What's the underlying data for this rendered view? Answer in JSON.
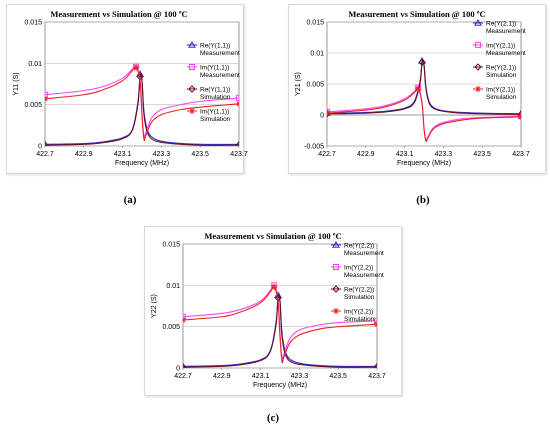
{
  "charts": [
    {
      "id": "a",
      "type": "line",
      "title": "Measurement vs Simulation @ 100 ºC",
      "xlabel": "Frequency (MHz)",
      "ylabel": "Y11 (S)",
      "xlim": [
        422.7,
        423.7
      ],
      "ylim": [
        0,
        0.015
      ],
      "xticks": [
        "422.7",
        "422.9",
        "423.1",
        "423.3",
        "423.5",
        "423.7"
      ],
      "yticks": [
        "0",
        "0.005",
        "0.01",
        "0.015"
      ],
      "yticks_values": [
        0,
        0.005,
        0.01,
        0.015
      ],
      "xticks_values": [
        422.7,
        422.9,
        423.1,
        423.3,
        423.5,
        423.7
      ],
      "caption": "(a)",
      "series": [
        {
          "name": "Re(Y(1,1))",
          "sub": "Measurement",
          "color": "#2b2bcc",
          "marker": "triangle",
          "x": [
            422.7,
            422.9,
            423.0,
            423.1,
            423.15,
            423.18,
            423.19,
            423.2,
            423.21,
            423.23,
            423.27,
            423.35,
            423.5,
            423.7
          ],
          "y": [
            0.0002,
            0.0003,
            0.0005,
            0.001,
            0.002,
            0.0055,
            0.0087,
            0.008,
            0.0042,
            0.0018,
            0.0008,
            0.0004,
            0.0002,
            0.0002
          ]
        },
        {
          "name": "Im(Y(1,1))",
          "sub": "Measurement",
          "color": "#ff44ff",
          "marker": "square",
          "x": [
            422.7,
            422.9,
            423.0,
            423.1,
            423.15,
            423.17,
            423.19,
            423.2,
            423.21,
            423.22,
            423.25,
            423.3,
            423.4,
            423.5,
            423.7
          ],
          "y": [
            0.0062,
            0.0067,
            0.0072,
            0.0082,
            0.0093,
            0.0096,
            0.008,
            0.004,
            0.0012,
            0.0016,
            0.0034,
            0.0044,
            0.005,
            0.0054,
            0.0058
          ]
        },
        {
          "name": "Re(Y(1,1))",
          "sub": "Simulation",
          "color": "#6b1020",
          "marker": "diamond",
          "x": [
            422.7,
            422.9,
            423.0,
            423.1,
            423.15,
            423.18,
            423.19,
            423.2,
            423.21,
            423.23,
            423.27,
            423.35,
            423.5,
            423.7
          ],
          "y": [
            0.0001,
            0.0002,
            0.0004,
            0.0009,
            0.0019,
            0.0052,
            0.0084,
            0.0078,
            0.0038,
            0.0015,
            0.0006,
            0.0003,
            0.0001,
            0.0001
          ]
        },
        {
          "name": "Im(Y(1,1))",
          "sub": "Simulation",
          "color": "#ee2222",
          "marker": "star",
          "x": [
            422.7,
            422.9,
            423.0,
            423.1,
            423.15,
            423.17,
            423.19,
            423.2,
            423.21,
            423.22,
            423.25,
            423.3,
            423.4,
            423.5,
            423.7
          ],
          "y": [
            0.0057,
            0.0062,
            0.0068,
            0.0079,
            0.0091,
            0.0095,
            0.0078,
            0.0036,
            0.0008,
            0.0013,
            0.0029,
            0.0038,
            0.0044,
            0.0047,
            0.0051
          ]
        }
      ]
    },
    {
      "id": "b",
      "type": "line",
      "title": "Measurement vs Simulation @ 100 ºC",
      "xlabel": "Frequency (MHz)",
      "ylabel": "Y21 (S)",
      "xlim": [
        422.7,
        423.7
      ],
      "ylim": [
        -0.005,
        0.015
      ],
      "xticks": [
        "422.7",
        "422.9",
        "423.1",
        "423.3",
        "423.5",
        "423.7"
      ],
      "yticks": [
        "-0.005",
        "0",
        "0.005",
        "0.01",
        "0.015"
      ],
      "yticks_values": [
        -0.005,
        0,
        0.005,
        0.01,
        0.015
      ],
      "xticks_values": [
        422.7,
        422.9,
        423.1,
        423.3,
        423.5,
        423.7
      ],
      "caption": "(b)",
      "series": [
        {
          "name": "Re(Y(2,1))",
          "sub": "Measurement",
          "color": "#2b2bcc",
          "marker": "triangle",
          "x": [
            422.7,
            422.9,
            423.0,
            423.1,
            423.15,
            423.18,
            423.19,
            423.2,
            423.21,
            423.23,
            423.27,
            423.35,
            423.5,
            423.7
          ],
          "y": [
            0.0003,
            0.0004,
            0.0006,
            0.0011,
            0.0022,
            0.0055,
            0.0087,
            0.0082,
            0.0045,
            0.0019,
            0.0009,
            0.0005,
            0.0003,
            0.0002
          ]
        },
        {
          "name": "Im(Y(2,1))",
          "sub": "Measurement",
          "color": "#ff44ff",
          "marker": "square",
          "x": [
            422.7,
            422.9,
            423.0,
            423.1,
            423.15,
            423.17,
            423.19,
            423.2,
            423.21,
            423.22,
            423.25,
            423.3,
            423.4,
            423.5,
            423.7
          ],
          "y": [
            0.0005,
            0.001,
            0.0015,
            0.0026,
            0.0038,
            0.0044,
            0.002,
            -0.002,
            -0.004,
            -0.0035,
            -0.002,
            -0.0012,
            -0.0006,
            -0.0004,
            -0.0002
          ]
        },
        {
          "name": "Re(Y(2,1))",
          "sub": "Simulation",
          "color": "#6b1020",
          "marker": "diamond",
          "x": [
            422.7,
            422.9,
            423.0,
            423.1,
            423.15,
            423.18,
            423.19,
            423.2,
            423.21,
            423.23,
            423.27,
            423.35,
            423.5,
            423.7
          ],
          "y": [
            0.0002,
            0.0003,
            0.0005,
            0.001,
            0.002,
            0.0052,
            0.0085,
            0.008,
            0.0042,
            0.0017,
            0.0008,
            0.0004,
            0.0002,
            0.0001
          ]
        },
        {
          "name": "Im(Y(2,1))",
          "sub": "Simulation",
          "color": "#ee2222",
          "marker": "star",
          "x": [
            422.7,
            422.9,
            423.0,
            423.1,
            423.15,
            423.17,
            423.19,
            423.2,
            423.21,
            423.22,
            423.25,
            423.3,
            423.4,
            423.5,
            423.7
          ],
          "y": [
            0.0003,
            0.0008,
            0.0013,
            0.0024,
            0.0036,
            0.0042,
            0.0018,
            -0.0022,
            -0.0042,
            -0.0037,
            -0.0022,
            -0.0014,
            -0.0008,
            -0.0005,
            -0.0003
          ]
        }
      ]
    },
    {
      "id": "c",
      "type": "line",
      "title": "Measurement vs Simulation @ 100 ºC",
      "xlabel": "Frequency (MHz)",
      "ylabel": "Y22 (S)",
      "xlim": [
        422.7,
        423.7
      ],
      "ylim": [
        0,
        0.015
      ],
      "xticks": [
        "422.7",
        "422.9",
        "423.1",
        "423.3",
        "423.5",
        "423.7"
      ],
      "yticks": [
        "0",
        "0.005",
        "0.01",
        "0.015"
      ],
      "yticks_values": [
        0,
        0.005,
        0.01,
        0.015
      ],
      "xticks_values": [
        422.7,
        422.9,
        423.1,
        423.3,
        423.5,
        423.7
      ],
      "caption": "(c)",
      "series": [
        {
          "name": "Re(Y(2,2))",
          "sub": "Measurement",
          "color": "#2b2bcc",
          "marker": "triangle",
          "x": [
            422.7,
            422.9,
            423.0,
            423.1,
            423.15,
            423.18,
            423.19,
            423.2,
            423.21,
            423.23,
            423.27,
            423.35,
            423.5,
            423.7
          ],
          "y": [
            0.0002,
            0.0003,
            0.0005,
            0.001,
            0.0021,
            0.0056,
            0.0088,
            0.0082,
            0.0043,
            0.0018,
            0.0008,
            0.0004,
            0.0002,
            0.0002
          ]
        },
        {
          "name": "Im(Y(2,2))",
          "sub": "Measurement",
          "color": "#ff44ff",
          "marker": "square",
          "x": [
            422.7,
            422.9,
            423.0,
            423.1,
            423.15,
            423.17,
            423.19,
            423.2,
            423.21,
            423.22,
            423.25,
            423.3,
            423.4,
            423.5,
            423.7
          ],
          "y": [
            0.0062,
            0.0066,
            0.0071,
            0.0081,
            0.0094,
            0.01,
            0.0082,
            0.0042,
            0.0012,
            0.0017,
            0.0035,
            0.0046,
            0.0052,
            0.0055,
            0.0057
          ]
        },
        {
          "name": "Re(Y(2,2))",
          "sub": "Simulation",
          "color": "#6b1020",
          "marker": "diamond",
          "x": [
            422.7,
            422.9,
            423.0,
            423.1,
            423.15,
            423.18,
            423.19,
            423.2,
            423.21,
            423.23,
            423.27,
            423.35,
            423.5,
            423.7
          ],
          "y": [
            0.0001,
            0.0002,
            0.0004,
            0.0009,
            0.002,
            0.0053,
            0.0085,
            0.0079,
            0.0039,
            0.0015,
            0.0006,
            0.0003,
            0.0001,
            0.0001
          ]
        },
        {
          "name": "Im(Y(2,2))",
          "sub": "Simulation",
          "color": "#ee2222",
          "marker": "star",
          "x": [
            422.7,
            422.9,
            423.0,
            423.1,
            423.15,
            423.17,
            423.19,
            423.2,
            423.21,
            423.22,
            423.25,
            423.3,
            423.4,
            423.5,
            423.7
          ],
          "y": [
            0.0058,
            0.0062,
            0.0068,
            0.0079,
            0.0092,
            0.0098,
            0.008,
            0.0038,
            0.0008,
            0.0013,
            0.003,
            0.004,
            0.0047,
            0.005,
            0.0053
          ]
        }
      ]
    }
  ]
}
